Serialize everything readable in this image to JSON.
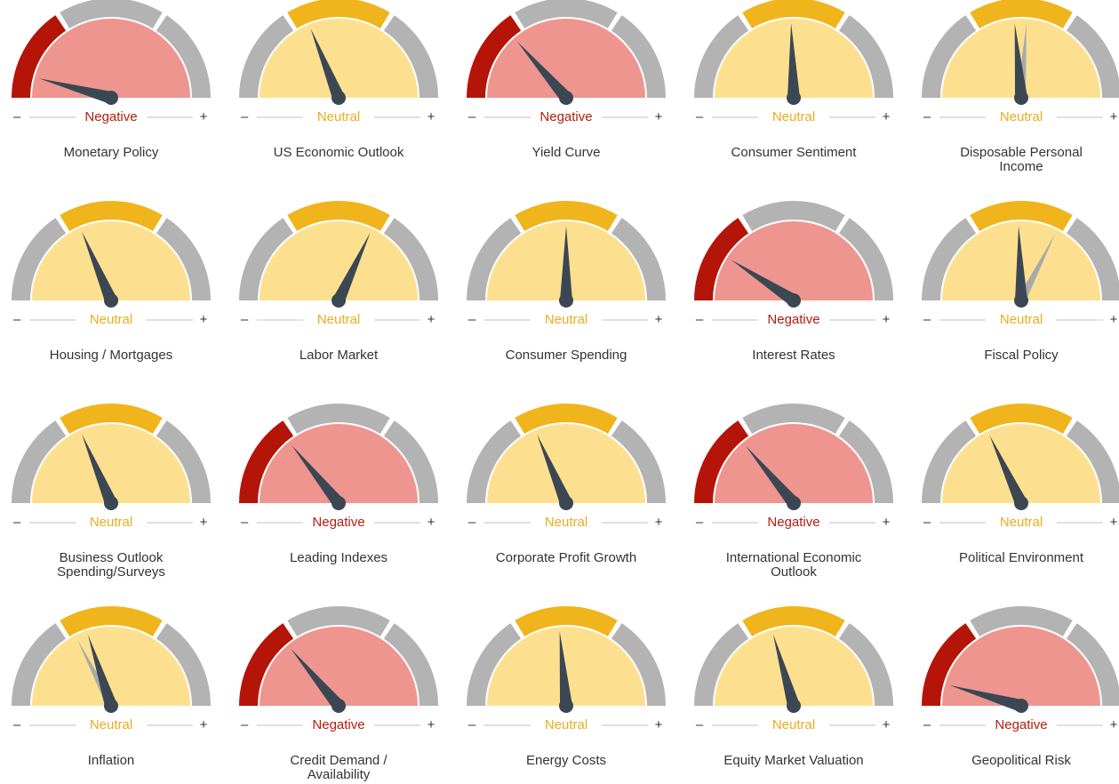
{
  "minus_sign": "–",
  "plus_sign": "+",
  "status_colors": {
    "Negative": {
      "fill": "#ee9590",
      "arc": "#b51408",
      "text": "#b41d10"
    },
    "Neutral": {
      "fill": "#fde08f",
      "arc": "#f0b41c",
      "text": "#e8ad1f"
    }
  },
  "gauges": [
    {
      "title": [
        "Monetary Policy"
      ],
      "status": "Negative",
      "needle": 165
    },
    {
      "title": [
        "US Economic Outlook"
      ],
      "status": "Neutral",
      "needle": 112
    },
    {
      "title": [
        "Yield Curve"
      ],
      "status": "Negative",
      "needle": 131
    },
    {
      "title": [
        "Consumer Sentiment"
      ],
      "status": "Neutral",
      "needle": 92
    },
    {
      "title": [
        "Disposable Personal",
        "Income"
      ],
      "status": "Neutral",
      "needle": 95,
      "previous": 86
    },
    {
      "title": [
        "Housing / Mortgages"
      ],
      "status": "Neutral",
      "needle": 113
    },
    {
      "title": [
        "Labor Market"
      ],
      "status": "Neutral",
      "needle": 65
    },
    {
      "title": [
        "Consumer Spending"
      ],
      "status": "Neutral",
      "needle": 90
    },
    {
      "title": [
        "Interest Rates"
      ],
      "status": "Negative",
      "needle": 147
    },
    {
      "title": [
        "Fiscal Policy"
      ],
      "status": "Neutral",
      "needle": 92,
      "previous": 63
    },
    {
      "title": [
        "Business Outlook",
        "Spending/Surveys"
      ],
      "status": "Neutral",
      "needle": 113
    },
    {
      "title": [
        "Leading Indexes"
      ],
      "status": "Negative",
      "needle": 129
    },
    {
      "title": [
        "Corporate Profit Growth"
      ],
      "status": "Neutral",
      "needle": 113
    },
    {
      "title": [
        "International Economic",
        "Outlook"
      ],
      "status": "Negative",
      "needle": 130
    },
    {
      "title": [
        "Political Environment"
      ],
      "status": "Neutral",
      "needle": 115
    },
    {
      "title": [
        "Inflation"
      ],
      "status": "Neutral",
      "needle": 108,
      "previous": 117
    },
    {
      "title": [
        "Credit Demand /",
        "Availability"
      ],
      "status": "Negative",
      "needle": 130
    },
    {
      "title": [
        "Energy Costs"
      ],
      "status": "Neutral",
      "needle": 95
    },
    {
      "title": [
        "Equity Market Valuation"
      ],
      "status": "Neutral",
      "needle": 106
    },
    {
      "title": [
        "Geopolitical Risk"
      ],
      "status": "Negative",
      "needle": 164
    }
  ]
}
